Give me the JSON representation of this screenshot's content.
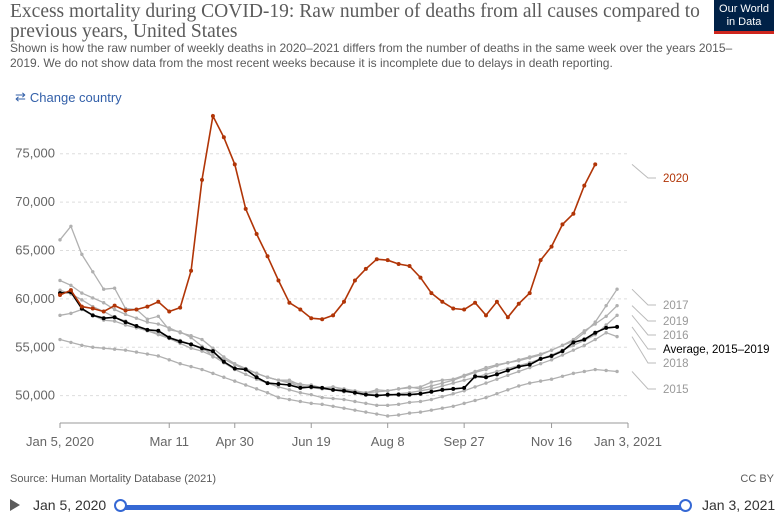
{
  "header": {
    "title": "Excess mortality during COVID-19: Raw number of deaths from all causes compared to previous years, United States",
    "subtitle": "Shown is how the raw number of weekly deaths in 2020–2021 differs from the number of deaths in the same week over the years 2015–2019. We do not show data from the most recent weeks because it is incomplete due to delays in death reporting.",
    "logo_line1": "Our World",
    "logo_line2": "in Data"
  },
  "controls": {
    "change_country_label": "Change country",
    "change_country_icon": "swap-arrows-icon"
  },
  "footer": {
    "source": "Source: Human Mortality Database (2021)",
    "license": "CC BY"
  },
  "timeline": {
    "start_label": "Jan 5, 2020",
    "end_label": "Jan 3, 2021",
    "play_icon": "play-icon"
  },
  "chart_data": {
    "type": "line",
    "ylim": [
      48000,
      79000
    ],
    "y_ticks": [
      50000,
      55000,
      60000,
      65000,
      70000,
      75000
    ],
    "y_tick_labels": [
      "50,000",
      "55,000",
      "60,000",
      "65,000",
      "70,000",
      "75,000"
    ],
    "x_ticks": [
      0,
      10,
      16,
      23,
      30,
      37,
      45,
      52
    ],
    "x_tick_labels": [
      "Jan 5, 2020",
      "Mar 11",
      "Apr 30",
      "Jun 19",
      "Aug 8",
      "Sep 27",
      "Nov 16",
      "Jan 3, 2021"
    ],
    "grid": true,
    "series": [
      {
        "name": "2020",
        "color": "#b13507",
        "values": [
          60400,
          60900,
          59200,
          59000,
          58700,
          59300,
          58800,
          58900,
          59200,
          59700,
          58700,
          59100,
          62900,
          72300,
          78900,
          76700,
          73900,
          69300,
          66700,
          64400,
          61900,
          59600,
          58900,
          58000,
          57900,
          58300,
          59700,
          61900,
          63100,
          64100,
          64000,
          63600,
          63400,
          62200,
          60600,
          59700,
          59000,
          58900,
          59600,
          58300,
          59700,
          58100,
          59500,
          60600,
          64000,
          65400,
          67700,
          68800,
          71700,
          73900
        ]
      },
      {
        "name": "2017",
        "color": "#b0b0b0",
        "values": [
          66100,
          67500,
          64600,
          62800,
          61000,
          61100,
          59000,
          58900,
          57900,
          58200,
          56800,
          56600,
          56000,
          55100,
          54000,
          53800,
          53200,
          52800,
          52300,
          51900,
          51600,
          51600,
          51100,
          51100,
          50800,
          50900,
          50700,
          50500,
          50300,
          50400,
          50500,
          50700,
          50800,
          50900,
          51400,
          51600,
          51700,
          52100,
          52500,
          52900,
          53200,
          53400,
          53600,
          53900,
          54200,
          54700,
          55200,
          55600,
          56500,
          57600,
          59300,
          61000
        ]
      },
      {
        "name": "2019",
        "color": "#b0b0b0",
        "values": [
          61900,
          61400,
          60600,
          60100,
          59600,
          58900,
          58400,
          58000,
          57600,
          57400,
          57000,
          56500,
          56200,
          55800,
          54900,
          54000,
          53300,
          52800,
          52300,
          51900,
          51600,
          51400,
          51200,
          51000,
          50800,
          50900,
          50600,
          50400,
          50300,
          50600,
          50500,
          50700,
          50900,
          50700,
          51000,
          51300,
          51600,
          52000,
          52400,
          52700,
          53100,
          53400,
          53700,
          54000,
          54300,
          54700,
          55200,
          55800,
          56700,
          57400,
          58200,
          59300
        ]
      },
      {
        "name": "2016",
        "color": "#b0b0b0",
        "values": [
          58300,
          58500,
          58900,
          58300,
          57800,
          57700,
          57300,
          57000,
          56700,
          56400,
          56000,
          55700,
          55300,
          54800,
          54400,
          53800,
          53200,
          52700,
          52300,
          51900,
          51600,
          51300,
          51000,
          50800,
          50700,
          50600,
          50400,
          50300,
          50200,
          50100,
          50000,
          50200,
          50300,
          50500,
          50700,
          51000,
          51300,
          51600,
          51900,
          52200,
          52500,
          52800,
          53100,
          53400,
          53800,
          54200,
          54700,
          55200,
          55700,
          56300,
          57300,
          58300
        ]
      },
      {
        "name": "2018",
        "color": "#b0b0b0",
        "values": [
          60900,
          60500,
          59900,
          59200,
          58700,
          58100,
          57700,
          57100,
          56700,
          56300,
          55900,
          55400,
          54900,
          54600,
          54100,
          53400,
          52700,
          52200,
          51700,
          51300,
          50900,
          50600,
          50300,
          50100,
          49800,
          49700,
          49600,
          49400,
          49200,
          49000,
          49000,
          49100,
          49300,
          49400,
          49600,
          49900,
          50200,
          50500,
          50900,
          51300,
          51700,
          52100,
          52500,
          52900,
          53300,
          53700,
          54200,
          54700,
          55200,
          55800,
          56500,
          56100
        ]
      },
      {
        "name": "2015",
        "color": "#b0b0b0",
        "values": [
          55800,
          55500,
          55200,
          55000,
          54900,
          54800,
          54700,
          54500,
          54300,
          54100,
          53700,
          53300,
          53000,
          52700,
          52300,
          51900,
          51500,
          51100,
          50700,
          50300,
          49800,
          49600,
          49400,
          49200,
          49100,
          48900,
          48700,
          48500,
          48300,
          48100,
          47900,
          48000,
          48200,
          48300,
          48500,
          48700,
          48900,
          49200,
          49500,
          49800,
          50200,
          50600,
          51000,
          51300,
          51500,
          51700,
          52000,
          52300,
          52500,
          52700,
          52600,
          52500
        ]
      },
      {
        "name": "Average, 2015–2019",
        "color": "#000000",
        "values": [
          60600,
          60700,
          59000,
          58300,
          58000,
          58100,
          57600,
          57200,
          56800,
          56700,
          56000,
          55600,
          55300,
          54900,
          54600,
          53500,
          52800,
          52700,
          51900,
          51300,
          51200,
          51100,
          50800,
          50900,
          50800,
          50600,
          50500,
          50300,
          50100,
          50000,
          50100,
          50100,
          50100,
          50200,
          50400,
          50600,
          50700,
          50800,
          52000,
          51900,
          52200,
          52600,
          53000,
          53200,
          53800,
          54100,
          54600,
          55500,
          55800,
          56500,
          57000,
          57100
        ]
      }
    ]
  }
}
